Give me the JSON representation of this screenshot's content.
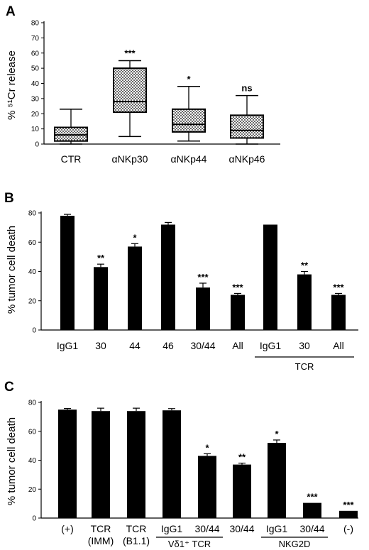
{
  "chart_data": [
    {
      "panel": "A",
      "type": "box",
      "ylabel": "% ⁵¹Cr release",
      "ylim": [
        0,
        80
      ],
      "yticks": [
        "0",
        "10",
        "20",
        "30",
        "40",
        "50",
        "60",
        "70",
        "80"
      ],
      "categories": [
        "CTR",
        "αNKp30",
        "αNKp44",
        "αNKp46"
      ],
      "boxes": [
        {
          "min": 0,
          "q1": 2,
          "median": 6,
          "q3": 11,
          "max": 23,
          "sig": ""
        },
        {
          "min": 5,
          "q1": 21,
          "median": 28,
          "q3": 50,
          "max": 55,
          "sig": "***"
        },
        {
          "min": 2,
          "q1": 8,
          "median": 13,
          "q3": 23,
          "max": 38,
          "sig": "*"
        },
        {
          "min": 0,
          "q1": 4,
          "median": 9,
          "q3": 19,
          "max": 32,
          "sig": "ns"
        }
      ],
      "colors": {
        "fill": "#b8b8b8",
        "stroke": "#000000"
      }
    },
    {
      "panel": "B",
      "type": "bar",
      "ylabel": "% tumor cell death",
      "ylim": [
        0,
        80
      ],
      "yticks": [
        "0",
        "20",
        "40",
        "60",
        "80"
      ],
      "categories": [
        "IgG1",
        "30",
        "44",
        "46",
        "30/44",
        "All",
        "IgG1",
        "30",
        "All"
      ],
      "values": [
        78,
        43,
        57,
        72,
        29,
        24,
        72,
        38,
        24
      ],
      "errors": [
        1,
        2,
        2,
        1.5,
        3,
        1,
        0,
        2,
        1
      ],
      "sig": [
        "",
        "**",
        "*",
        "",
        "***",
        "***",
        "",
        "**",
        "***"
      ],
      "group_labels": [
        {
          "label": "TCR",
          "from": 6,
          "to": 8
        }
      ],
      "colors": {
        "bar": "#000000"
      }
    },
    {
      "panel": "C",
      "type": "bar",
      "ylabel": "% tumor cell death",
      "ylim": [
        0,
        80
      ],
      "yticks": [
        "0",
        "20",
        "40",
        "60",
        "80"
      ],
      "categories": [
        [
          "(+)"
        ],
        [
          "TCR",
          "(IMM)"
        ],
        [
          "TCR",
          "(B1.1)"
        ],
        [
          "IgG1"
        ],
        [
          "30/44"
        ],
        [
          "30/44"
        ],
        [
          "IgG1"
        ],
        [
          "30/44"
        ],
        [
          "(-)"
        ]
      ],
      "values": [
        75,
        74,
        74,
        74.5,
        43,
        37,
        52,
        10.5,
        5
      ],
      "errors": [
        0.8,
        2,
        2,
        1.2,
        1.5,
        1,
        2,
        0,
        0
      ],
      "sig": [
        "",
        "",
        "",
        "",
        "*",
        "**",
        "*",
        "***",
        "***"
      ],
      "group_labels": [
        {
          "label": "Vδ1⁺ TCR",
          "from": 3,
          "to": 4
        },
        {
          "label": "NKG2D",
          "from": 6,
          "to": 7
        }
      ],
      "colors": {
        "bar": "#000000"
      }
    }
  ]
}
